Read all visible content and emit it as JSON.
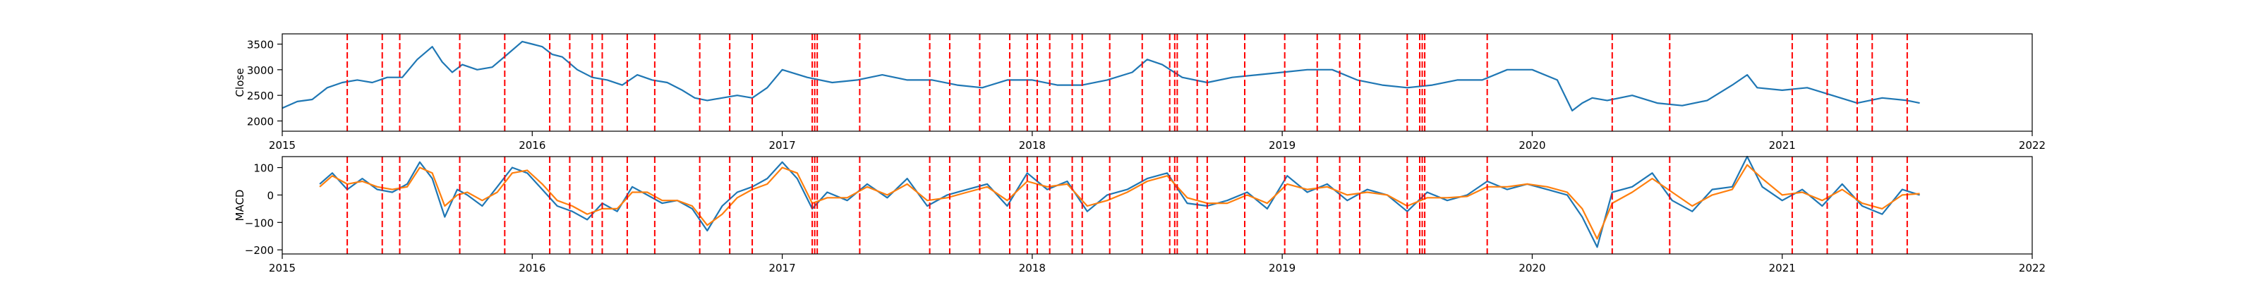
{
  "chart_data": [
    {
      "type": "line",
      "ylabel": "Close",
      "xlim": [
        2015.0,
        2022.0
      ],
      "ylim": [
        1800,
        3700
      ],
      "x_ticks": [
        2015,
        2016,
        2017,
        2018,
        2019,
        2020,
        2021,
        2022
      ],
      "x_tick_labels": [
        "2015",
        "2016",
        "2017",
        "2018",
        "2019",
        "2020",
        "2021",
        "2022"
      ],
      "y_ticks": [
        2000,
        2500,
        3000,
        3500
      ],
      "y_tick_labels": [
        "2000",
        "2500",
        "3000",
        "3500"
      ],
      "series": [
        {
          "color": "#1f77b4",
          "x": [
            2015.0,
            2015.06,
            2015.12,
            2015.18,
            2015.24,
            2015.3,
            2015.36,
            2015.42,
            2015.48,
            2015.54,
            2015.6,
            2015.64,
            2015.68,
            2015.72,
            2015.78,
            2015.84,
            2015.9,
            2015.96,
            2016.0,
            2016.04,
            2016.08,
            2016.12,
            2016.18,
            2016.24,
            2016.3,
            2016.36,
            2016.42,
            2016.48,
            2016.54,
            2016.6,
            2016.65,
            2016.7,
            2016.76,
            2016.82,
            2016.88,
            2016.94,
            2017.0,
            2017.1,
            2017.2,
            2017.3,
            2017.4,
            2017.5,
            2017.6,
            2017.7,
            2017.8,
            2017.9,
            2018.0,
            2018.1,
            2018.2,
            2018.3,
            2018.4,
            2018.46,
            2018.52,
            2018.6,
            2018.7,
            2018.8,
            2018.9,
            2019.0,
            2019.1,
            2019.2,
            2019.3,
            2019.4,
            2019.5,
            2019.6,
            2019.7,
            2019.8,
            2019.9,
            2020.0,
            2020.1,
            2020.16,
            2020.2,
            2020.24,
            2020.3,
            2020.4,
            2020.5,
            2020.6,
            2020.7,
            2020.8,
            2020.86,
            2020.9,
            2021.0,
            2021.1,
            2021.2,
            2021.3,
            2021.4,
            2021.5,
            2021.55
          ],
          "y": [
            2250,
            2380,
            2420,
            2650,
            2750,
            2800,
            2750,
            2850,
            2850,
            3200,
            3450,
            3150,
            2950,
            3100,
            3000,
            3050,
            3300,
            3550,
            3500,
            3450,
            3300,
            3250,
            3000,
            2850,
            2800,
            2700,
            2900,
            2800,
            2750,
            2600,
            2450,
            2400,
            2450,
            2500,
            2450,
            2650,
            3000,
            2850,
            2750,
            2800,
            2900,
            2800,
            2800,
            2700,
            2650,
            2800,
            2800,
            2700,
            2700,
            2800,
            2950,
            3200,
            3100,
            2850,
            2750,
            2850,
            2900,
            2950,
            3000,
            3000,
            2800,
            2700,
            2650,
            2700,
            2800,
            2800,
            3000,
            3000,
            2800,
            2200,
            2350,
            2450,
            2400,
            2500,
            2350,
            2300,
            2400,
            2700,
            2900,
            2650,
            2600,
            2650,
            2500,
            2350,
            2450,
            2400,
            2350
          ]
        }
      ]
    },
    {
      "type": "line",
      "ylabel": "MACD",
      "xlim": [
        2015.0,
        2022.0
      ],
      "ylim": [
        -215,
        140
      ],
      "x_ticks": [
        2015,
        2016,
        2017,
        2018,
        2019,
        2020,
        2021,
        2022
      ],
      "x_tick_labels": [
        "2015",
        "2016",
        "2017",
        "2018",
        "2019",
        "2020",
        "2021",
        "2022"
      ],
      "y_ticks": [
        -200,
        -100,
        0,
        100
      ],
      "y_tick_labels": [
        "−200",
        "−100",
        "0",
        "100"
      ],
      "series": [
        {
          "color": "#1f77b4",
          "x": [
            2015.15,
            2015.2,
            2015.26,
            2015.32,
            2015.38,
            2015.44,
            2015.5,
            2015.55,
            2015.6,
            2015.65,
            2015.7,
            2015.74,
            2015.8,
            2015.86,
            2015.92,
            2015.98,
            2016.04,
            2016.1,
            2016.16,
            2016.22,
            2016.28,
            2016.34,
            2016.4,
            2016.46,
            2016.52,
            2016.58,
            2016.64,
            2016.7,
            2016.76,
            2016.82,
            2016.88,
            2016.94,
            2017.0,
            2017.06,
            2017.12,
            2017.18,
            2017.26,
            2017.34,
            2017.42,
            2017.5,
            2017.58,
            2017.66,
            2017.74,
            2017.82,
            2017.9,
            2017.98,
            2018.06,
            2018.14,
            2018.22,
            2018.3,
            2018.38,
            2018.46,
            2018.54,
            2018.62,
            2018.7,
            2018.78,
            2018.86,
            2018.94,
            2019.02,
            2019.1,
            2019.18,
            2019.26,
            2019.34,
            2019.42,
            2019.5,
            2019.58,
            2019.66,
            2019.74,
            2019.82,
            2019.9,
            2019.98,
            2020.06,
            2020.14,
            2020.2,
            2020.26,
            2020.32,
            2020.4,
            2020.48,
            2020.56,
            2020.64,
            2020.72,
            2020.8,
            2020.86,
            2020.92,
            2021.0,
            2021.08,
            2021.16,
            2021.24,
            2021.32,
            2021.4,
            2021.48,
            2021.55
          ],
          "y": [
            40,
            80,
            20,
            60,
            20,
            10,
            40,
            120,
            60,
            -80,
            20,
            0,
            -40,
            30,
            100,
            80,
            20,
            -40,
            -60,
            -90,
            -30,
            -60,
            30,
            0,
            -30,
            -20,
            -50,
            -130,
            -40,
            10,
            30,
            60,
            120,
            60,
            -50,
            10,
            -20,
            40,
            -10,
            60,
            -40,
            0,
            20,
            40,
            -40,
            80,
            20,
            50,
            -60,
            0,
            20,
            60,
            80,
            -30,
            -40,
            -20,
            10,
            -50,
            70,
            10,
            40,
            -20,
            20,
            0,
            -60,
            10,
            -20,
            0,
            50,
            20,
            40,
            20,
            0,
            -80,
            -190,
            10,
            30,
            80,
            -20,
            -60,
            20,
            30,
            140,
            30,
            -20,
            20,
            -40,
            40,
            -40,
            -70,
            20,
            0
          ]
        },
        {
          "color": "#ff7f0e",
          "x": [
            2015.15,
            2015.2,
            2015.26,
            2015.32,
            2015.38,
            2015.44,
            2015.5,
            2015.55,
            2015.6,
            2015.65,
            2015.7,
            2015.74,
            2015.8,
            2015.86,
            2015.92,
            2015.98,
            2016.04,
            2016.1,
            2016.16,
            2016.22,
            2016.28,
            2016.34,
            2016.4,
            2016.46,
            2016.52,
            2016.58,
            2016.64,
            2016.7,
            2016.76,
            2016.82,
            2016.88,
            2016.94,
            2017.0,
            2017.06,
            2017.12,
            2017.18,
            2017.26,
            2017.34,
            2017.42,
            2017.5,
            2017.58,
            2017.66,
            2017.74,
            2017.82,
            2017.9,
            2017.98,
            2018.06,
            2018.14,
            2018.22,
            2018.3,
            2018.38,
            2018.46,
            2018.54,
            2018.62,
            2018.7,
            2018.78,
            2018.86,
            2018.94,
            2019.02,
            2019.1,
            2019.18,
            2019.26,
            2019.34,
            2019.42,
            2019.5,
            2019.58,
            2019.66,
            2019.74,
            2019.82,
            2019.9,
            2019.98,
            2020.06,
            2020.14,
            2020.2,
            2020.26,
            2020.32,
            2020.4,
            2020.48,
            2020.56,
            2020.64,
            2020.72,
            2020.8,
            2020.86,
            2020.92,
            2021.0,
            2021.08,
            2021.16,
            2021.24,
            2021.32,
            2021.4,
            2021.48,
            2021.55
          ],
          "y": [
            30,
            70,
            40,
            50,
            30,
            20,
            30,
            100,
            80,
            -40,
            0,
            10,
            -20,
            10,
            80,
            90,
            40,
            -20,
            -40,
            -70,
            -50,
            -50,
            10,
            10,
            -20,
            -20,
            -40,
            -110,
            -70,
            -10,
            20,
            40,
            100,
            80,
            -30,
            -10,
            -10,
            30,
            0,
            40,
            -20,
            -10,
            10,
            30,
            -20,
            50,
            30,
            40,
            -40,
            -20,
            10,
            50,
            70,
            -10,
            -30,
            -30,
            0,
            -30,
            40,
            20,
            30,
            0,
            10,
            0,
            -40,
            -10,
            -10,
            -5,
            30,
            30,
            40,
            30,
            10,
            -50,
            -160,
            -30,
            10,
            60,
            10,
            -40,
            0,
            20,
            110,
            60,
            0,
            10,
            -20,
            20,
            -30,
            -50,
            0,
            5
          ]
        }
      ]
    }
  ],
  "event_lines_x": [
    2015.26,
    2015.4,
    2015.47,
    2015.71,
    2015.89,
    2016.07,
    2016.15,
    2016.24,
    2016.28,
    2016.38,
    2016.49,
    2016.67,
    2016.79,
    2016.88,
    2017.12,
    2017.13,
    2017.14,
    2017.31,
    2017.59,
    2017.67,
    2017.79,
    2017.91,
    2017.98,
    2018.02,
    2018.07,
    2018.16,
    2018.2,
    2018.31,
    2018.44,
    2018.55,
    2018.57,
    2018.58,
    2018.66,
    2018.7,
    2018.85,
    2019.01,
    2019.14,
    2019.23,
    2019.31,
    2019.5,
    2019.55,
    2019.56,
    2019.57,
    2019.82,
    2020.32,
    2020.55,
    2021.04,
    2021.18,
    2021.3,
    2021.36,
    2021.5
  ]
}
